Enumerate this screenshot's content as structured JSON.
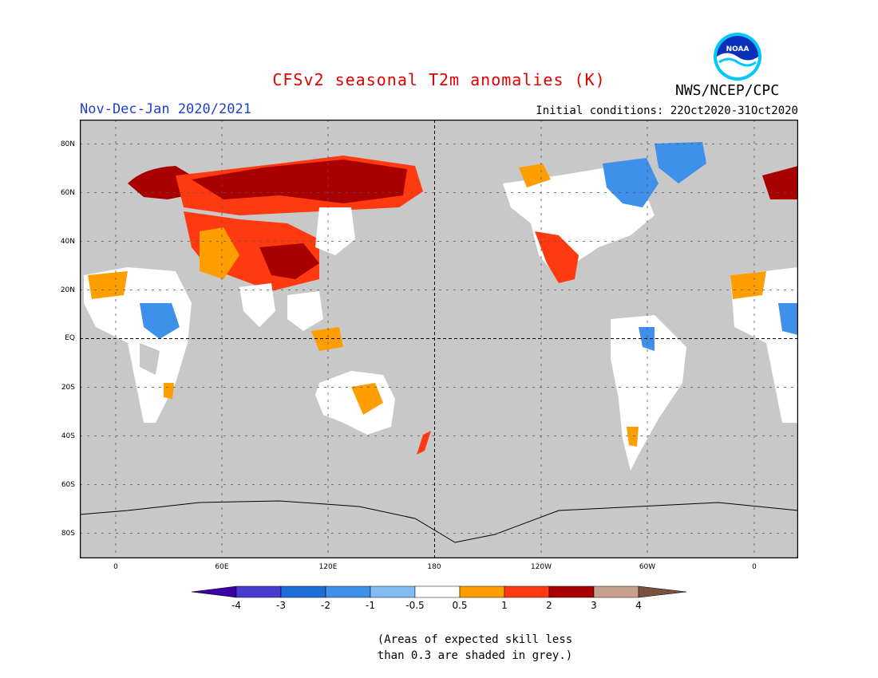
{
  "header": {
    "title": "CFSv2 seasonal T2m anomalies (K)",
    "agency": "NWS/NCEP/CPC",
    "period": "Nov-Dec-Jan 2020/2021",
    "initial_conditions": "Initial conditions: 22Oct2020-31Oct2020",
    "logo_text": "NOAA"
  },
  "map": {
    "background_color": "#c8c8c8",
    "lat_labels": [
      "80N",
      "60N",
      "40N",
      "20N",
      "EQ",
      "20S",
      "40S",
      "60S",
      "80S"
    ],
    "lon_labels": [
      "0",
      "60E",
      "120E",
      "180",
      "120W",
      "60W",
      "0"
    ]
  },
  "legend": {
    "levels": [
      "-4",
      "-3",
      "-2",
      "-1",
      "-0.5",
      "0.5",
      "1",
      "2",
      "3",
      "4"
    ],
    "colors": [
      "#3a00a8",
      "#4a3bd0",
      "#1e6ed8",
      "#3e90ea",
      "#82bcf2",
      "#ffffff",
      "#ff9e00",
      "#ff3a10",
      "#a80000",
      "#c8a090",
      "#7a5040"
    ]
  },
  "note": {
    "line1": "(Areas of expected skill less",
    "line2": "than 0.3 are shaded in grey.)"
  }
}
